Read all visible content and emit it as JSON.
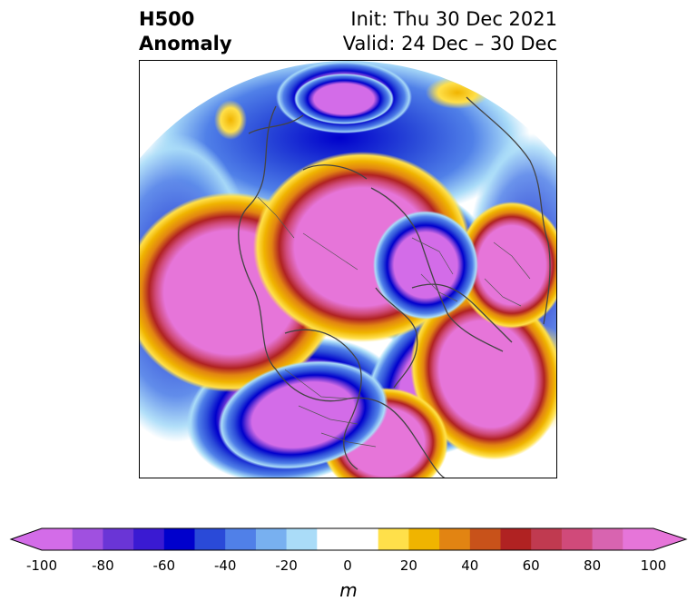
{
  "title": {
    "left_line1": "H500",
    "left_line2": "Anomaly",
    "right_line1": "Init: Thu 30 Dec 2021",
    "right_line2": "Valid: 24 Dec – 30 Dec"
  },
  "map": {
    "projection": "north-polar-stereographic",
    "features": [
      "H500 anomaly fill",
      "coastlines",
      "country borders",
      "US state boundaries"
    ],
    "positive_anomaly_centers": [
      "Alaska / Bering Sea",
      "Northwestern Europe",
      "North Atlantic",
      "Western North Pacific",
      "Eastern United States",
      "Greenland / Arctic"
    ],
    "negative_anomaly_centers": [
      "Western North America",
      "Siberia",
      "East Asia / Japan"
    ]
  },
  "colorbar": {
    "ticks": [
      "-100",
      "-80",
      "-60",
      "-40",
      "-20",
      "0",
      "20",
      "40",
      "60",
      "80",
      "100"
    ],
    "unit": "m",
    "colors": [
      "#d36ce8",
      "#a050e0",
      "#6a35d6",
      "#3a1ad2",
      "#0000cc",
      "#2a4ad8",
      "#5080e8",
      "#78b0f0",
      "#aadcf8",
      "#ffffff",
      "#ffffff",
      "#ffe04a",
      "#f0b400",
      "#e28412",
      "#c8521a",
      "#b02222",
      "#c03a50",
      "#d04a7a",
      "#d864b0",
      "#e675d9"
    ],
    "extend": "both"
  }
}
